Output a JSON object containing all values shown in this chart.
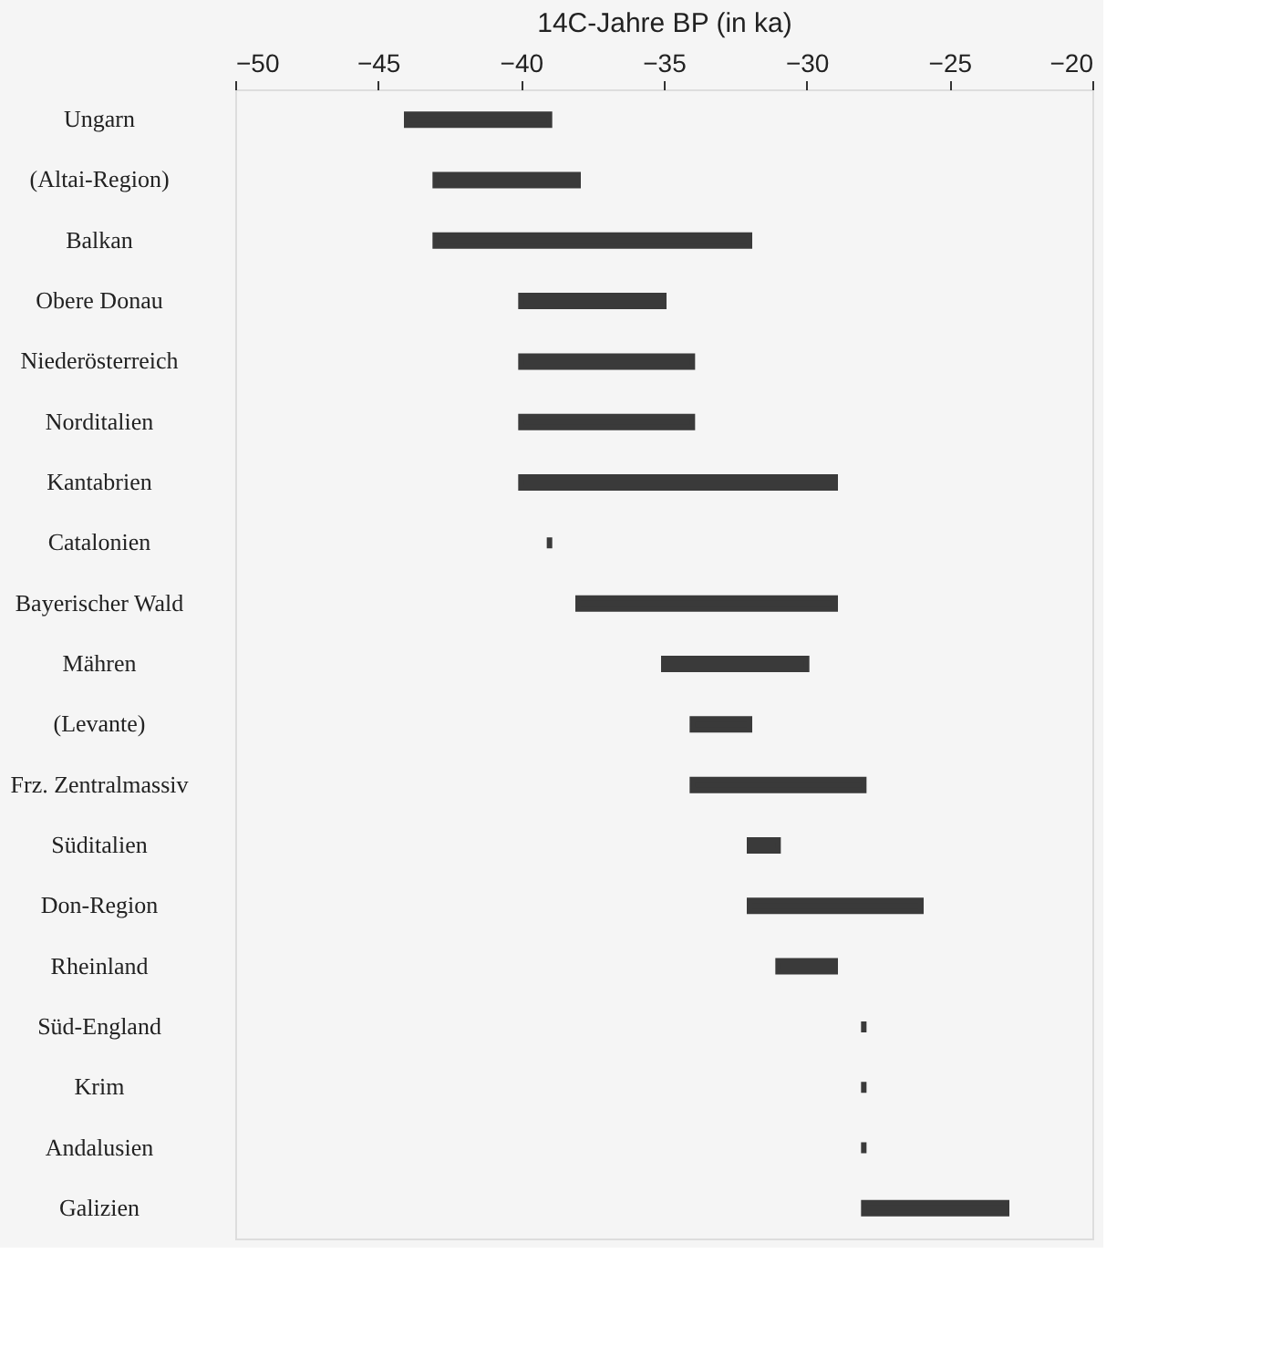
{
  "chart_data": {
    "type": "bar",
    "orientation": "horizontal",
    "xlabel": "14C-Jahre BP (in ka)",
    "categories": [
      "Ungarn",
      "(Altai-Region)",
      "Balkan",
      "Obere Donau",
      "Niederösterreich",
      "Norditalien",
      "Kantabrien",
      "Catalonien",
      "Bayerischer Wald",
      "Mähren",
      "(Levante)",
      "Frz. Zentralmassiv",
      "Süditalien",
      "Don-Region",
      "Rheinland",
      "Süd-England",
      "Krim",
      "Andalusien",
      "Galizien"
    ],
    "base": [
      -44,
      -43,
      -43,
      -40,
      -40,
      -40,
      -40,
      -39,
      -38,
      -35,
      -34,
      -34,
      -32,
      -32,
      -31,
      -28,
      -28,
      -28,
      -28
    ],
    "values": [
      5,
      5,
      11,
      5,
      6,
      6,
      11,
      0,
      9,
      5,
      2,
      6,
      1,
      6,
      2,
      0,
      0,
      0,
      5
    ],
    "color": "#3a3a3a",
    "xlim": [
      -50,
      -20
    ],
    "xticks": [
      -50,
      -45,
      -40,
      -35,
      -30,
      -25,
      -20
    ],
    "grid": false
  }
}
